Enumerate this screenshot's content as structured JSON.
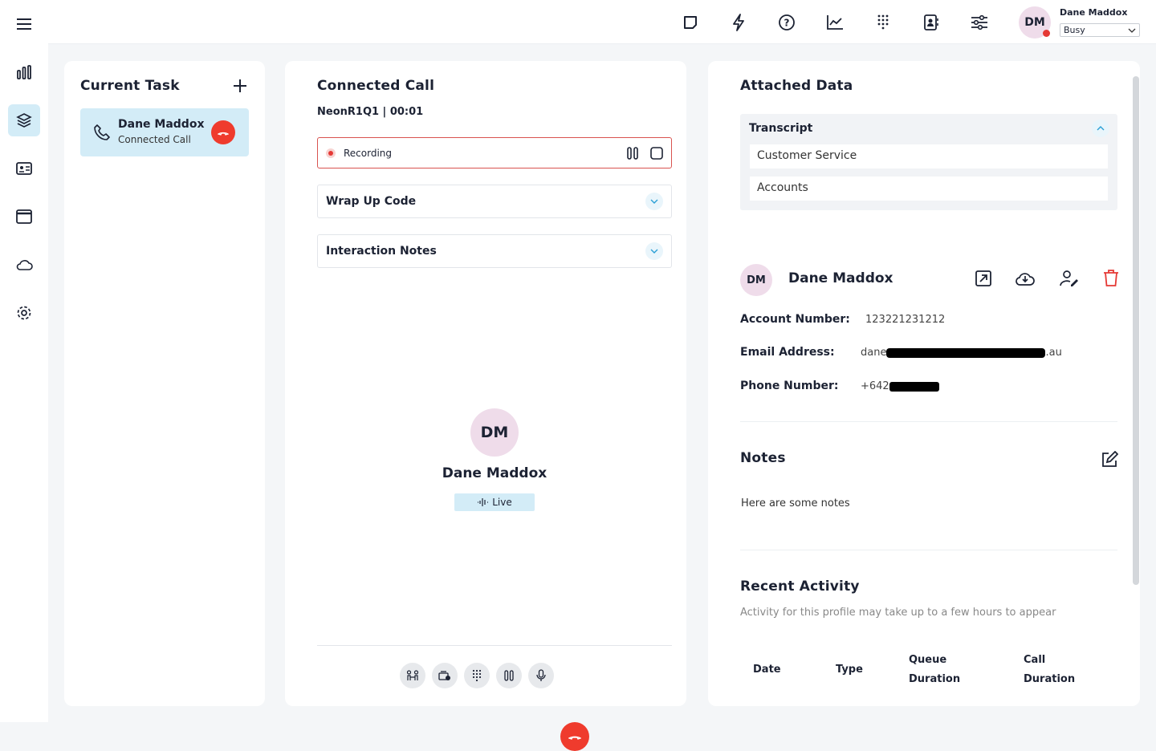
{
  "topbar": {
    "user_initials": "DM",
    "user_name": "Dane Maddox",
    "status": "Busy",
    "status_color": "#e53935",
    "icons": [
      "sticky-note-icon",
      "lightning-icon",
      "help-icon",
      "chart-line-icon",
      "dialpad-icon",
      "contacts-icon",
      "sliders-icon"
    ]
  },
  "sidebar": {
    "icons": [
      "menu-icon",
      "bar-chart-icon",
      "layers-icon",
      "id-card-icon",
      "window-icon",
      "cloud-icon",
      "settings-icon"
    ],
    "active": "layers-icon"
  },
  "current_task": {
    "title": "Current Task",
    "task": {
      "name": "Dane Maddox",
      "status": "Connected Call"
    }
  },
  "connected_call": {
    "title": "Connected Call",
    "queue_timer": "NeonR1Q1 | 00:01",
    "recording_label": "Recording",
    "wrap_up_label": "Wrap Up Code",
    "interaction_notes_label": "Interaction Notes",
    "caller": {
      "initials": "DM",
      "name": "Dane Maddox",
      "badge": "Live"
    },
    "controls": [
      "transfer-button",
      "park-button",
      "dialpad-button",
      "hold-button",
      "mute-button",
      "end-call-button"
    ]
  },
  "attached_data": {
    "title": "Attached Data",
    "transcript": {
      "label": "Transcript",
      "items": [
        "Customer Service",
        "Accounts"
      ]
    },
    "contact": {
      "initials": "DM",
      "name": "Dane Maddox",
      "fields": [
        {
          "label": "Account Number:",
          "value": "123221231212"
        },
        {
          "label": "Email Address:",
          "value_start": "dane",
          "value_end": ".au"
        },
        {
          "label": "Phone Number:",
          "value_start": "+642",
          "value_end": ""
        }
      ]
    },
    "notes": {
      "title": "Notes",
      "text": "Here are some notes"
    },
    "recent_activity": {
      "title": "Recent Activity",
      "subtitle": "Activity for this profile may take up to a few hours to appear",
      "columns": [
        [
          "Date"
        ],
        [
          "Type"
        ],
        [
          "Queue",
          "Duration"
        ],
        [
          "Call",
          "Duration"
        ]
      ]
    }
  },
  "colors": {
    "accent": "#d3ecf7",
    "danger": "#ef3b2d",
    "recording_border": "#d9534f"
  }
}
